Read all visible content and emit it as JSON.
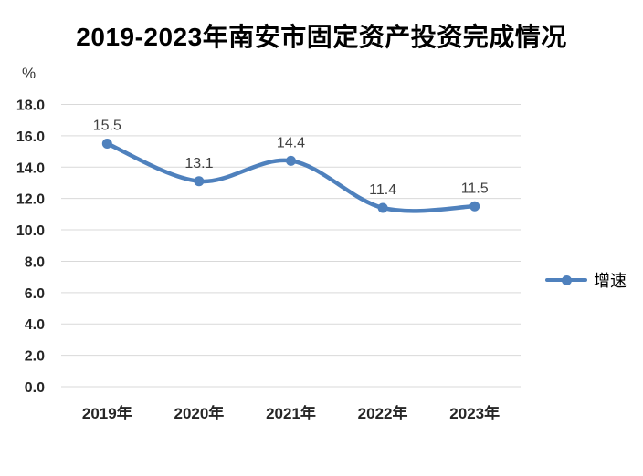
{
  "header": {
    "title": "2019-2023年南安市固定资产投资完成情况"
  },
  "axes": {
    "y_unit_label": "%"
  },
  "legend": {
    "items": [
      {
        "label": "增速",
        "color": "#4F81BD"
      }
    ]
  },
  "chart_data": {
    "type": "line",
    "smooth": true,
    "title": "2019-2023年南安市固定资产投资完成情况",
    "categories": [
      "2019年",
      "2020年",
      "2021年",
      "2022年",
      "2023年"
    ],
    "series": [
      {
        "name": "增速",
        "values": [
          15.5,
          13.1,
          14.4,
          11.4,
          11.5
        ],
        "color": "#4F81BD",
        "marker": "circle"
      }
    ],
    "data_labels": [
      "15.5",
      "13.1",
      "14.4",
      "11.4",
      "11.5"
    ],
    "xlabel": "",
    "ylabel": "%",
    "ylim": [
      0,
      18
    ],
    "ytick_step": 2,
    "ytick_labels": [
      "18.0",
      "16.0",
      "14.0",
      "12.0",
      "10.0",
      "8.0",
      "6.0",
      "4.0",
      "2.0",
      "0.0"
    ],
    "grid": true,
    "grid_color": "#D9D9D9",
    "legend_position": "right",
    "tick_label_color": "#262626",
    "data_label_color": "#404040"
  }
}
